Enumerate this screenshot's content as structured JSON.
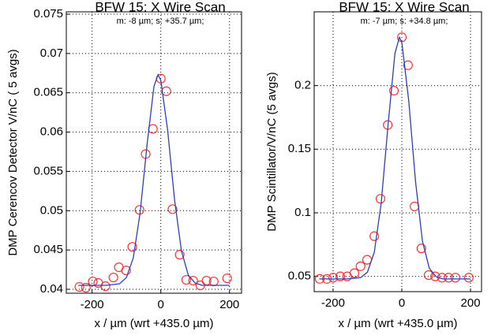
{
  "chart_data": [
    {
      "type": "scatter",
      "title": "BFW 15: X Wire Scan",
      "subtitle": "m:  -8 µm; s: +35.7 µm;",
      "x_label": "x / µm (wrt  +435.0 µm)",
      "y_label": "DMP Cerencov Detector V/nC ( 5 avgs)",
      "xlim": [
        -275,
        235
      ],
      "ylim": [
        0.0395,
        0.0753
      ],
      "xticks": [
        -200,
        0,
        200
      ],
      "yticks": [
        0.04,
        0.045,
        0.05,
        0.055,
        0.06,
        0.065,
        0.07,
        0.075
      ],
      "grid": true,
      "series": [
        {
          "style": "circle",
          "color": "#ff3333",
          "x": [
            -237,
            -218,
            -198,
            -182,
            -161,
            -138,
            -122,
            -101,
            -83,
            -62,
            -44,
            -23,
            0,
            16,
            34,
            55,
            74,
            94,
            115,
            133,
            154,
            193
          ],
          "values": [
            0.0403,
            0.0402,
            0.041,
            0.0408,
            0.0404,
            0.0415,
            0.0428,
            0.0424,
            0.0454,
            0.0501,
            0.0572,
            0.0604,
            0.0668,
            0.0652,
            0.0502,
            0.0444,
            0.0412,
            0.0411,
            0.0405,
            0.0411,
            0.041,
            0.0414
          ]
        },
        {
          "style": "line",
          "color": "#2a3fbf",
          "x": [
            -240,
            -200,
            -160,
            -120,
            -100,
            -80,
            -60,
            -40,
            -20,
            -8,
            0,
            20,
            40,
            60,
            80,
            100,
            120,
            160,
            200
          ],
          "values": [
            0.0405,
            0.0405,
            0.0405,
            0.0407,
            0.0415,
            0.044,
            0.0498,
            0.0584,
            0.0658,
            0.0673,
            0.0666,
            0.0602,
            0.0514,
            0.0449,
            0.0418,
            0.0408,
            0.0405,
            0.0405,
            0.0405
          ]
        }
      ]
    },
    {
      "type": "scatter",
      "title": "BFW 15: X Wire Scan",
      "subtitle": "m:  -7 µm; s: +34.8 µm;",
      "x_label": "x / µm (wrt  +435.0 µm)",
      "y_label": "DMP Scintillator/V/nC (5 avgs)",
      "xlim": [
        -255,
        232
      ],
      "ylim": [
        0.038,
        0.258
      ],
      "xticks": [
        -200,
        0,
        200
      ],
      "yticks": [
        0.05,
        0.1,
        0.15,
        0.2
      ],
      "grid": true,
      "series": [
        {
          "style": "circle",
          "color": "#ff3333",
          "x": [
            -239,
            -218,
            -200,
            -179,
            -159,
            -138,
            -120,
            -101,
            -80,
            -62,
            -41,
            -23,
            0,
            18,
            37,
            57,
            78,
            97,
            117,
            136,
            156,
            195
          ],
          "values": [
            0.048,
            0.048,
            0.049,
            0.05,
            0.05,
            0.0525,
            0.058,
            0.063,
            0.0816,
            0.111,
            0.169,
            0.196,
            0.238,
            0.216,
            0.105,
            0.072,
            0.051,
            0.05,
            0.049,
            0.049,
            0.049,
            0.049
          ]
        },
        {
          "style": "line",
          "color": "#2a3fbf",
          "x": [
            -240,
            -200,
            -160,
            -120,
            -100,
            -80,
            -60,
            -40,
            -20,
            -7,
            0,
            20,
            40,
            60,
            80,
            100,
            120,
            160,
            200
          ],
          "values": [
            0.048,
            0.048,
            0.048,
            0.049,
            0.0533,
            0.0691,
            0.1075,
            0.169,
            0.2253,
            0.238,
            0.2342,
            0.1886,
            0.1244,
            0.0778,
            0.0564,
            0.0497,
            0.048,
            0.048,
            0.048
          ]
        }
      ]
    }
  ]
}
